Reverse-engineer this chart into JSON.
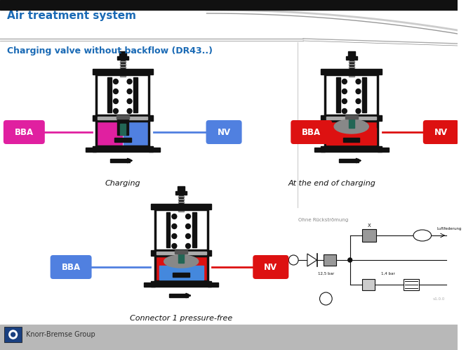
{
  "title": "Air treatment system",
  "subtitle": "Charging valve without backflow (DR43..)",
  "title_color": "#1a6ab5",
  "subtitle_color": "#1a6ab5",
  "bg_color": "#ffffff",
  "header_bar_color": "#111111",
  "footer_bar_color": "#b8b8b8",
  "footer_text": "Knorr-Bremse Group",
  "caption1": "Charging",
  "caption2": "At the end of charging",
  "caption3": "Connector 1 pressure-free",
  "schematic_label": "Ohne Rückströmung",
  "magenta": "#e020a0",
  "cyan_blue": "#5080e0",
  "red": "#dd1111",
  "blue": "#4488dd",
  "gray": "#888888",
  "black": "#111111",
  "white": "#ffffff",
  "dark_gray": "#555555",
  "line_gray": "#bbbbbb",
  "teal": "#226655"
}
